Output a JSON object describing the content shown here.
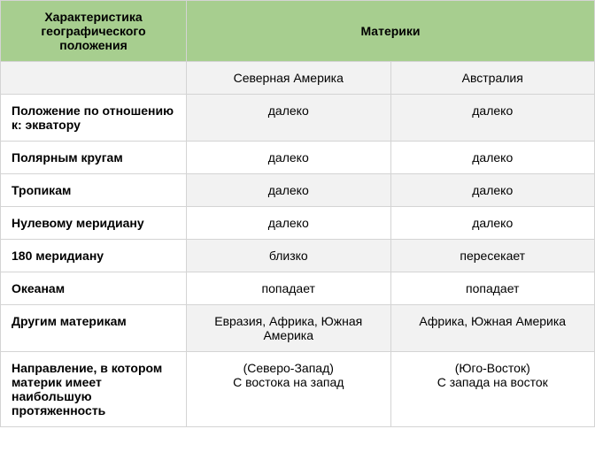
{
  "table": {
    "header": {
      "col1": "Характеристика географического положения",
      "col_group": "Материки"
    },
    "subheader": {
      "c1": "",
      "c2": "Северная Америка",
      "c3": "Австралия"
    },
    "rows": [
      {
        "label": "Положение по отношению к: экватору",
        "c2": "далеко",
        "c3": "далеко",
        "alt": true
      },
      {
        "label": "Полярным кругам",
        "c2": "далеко",
        "c3": "далеко",
        "alt": false
      },
      {
        "label": "Тропикам",
        "c2": "далеко",
        "c3": "далеко",
        "alt": true
      },
      {
        "label": "Нулевому меридиану",
        "c2": "далеко",
        "c3": "далеко",
        "alt": false
      },
      {
        "label": "180 меридиану",
        "c2": "близко",
        "c3": "пересекает",
        "alt": true
      },
      {
        "label": "Океанам",
        "c2": "попадает",
        "c3": "попадает",
        "alt": false
      },
      {
        "label": "Другим материкам",
        "c2": "Евразия, Африка, Южная Америка",
        "c3": "Африка, Южная Америка",
        "alt": true
      },
      {
        "label": "Направление, в котором материк имеет наибольшую протяженность",
        "c2": "(Северо-Запад)\nС востока на запад",
        "c3": "(Юго-Восток)\nС запада на восток",
        "alt": false
      }
    ],
    "colors": {
      "header_bg": "#a7ce8f",
      "alt_bg": "#f2f2f2",
      "border": "#d4d4d4",
      "text": "#000000"
    },
    "font_size": 14
  }
}
